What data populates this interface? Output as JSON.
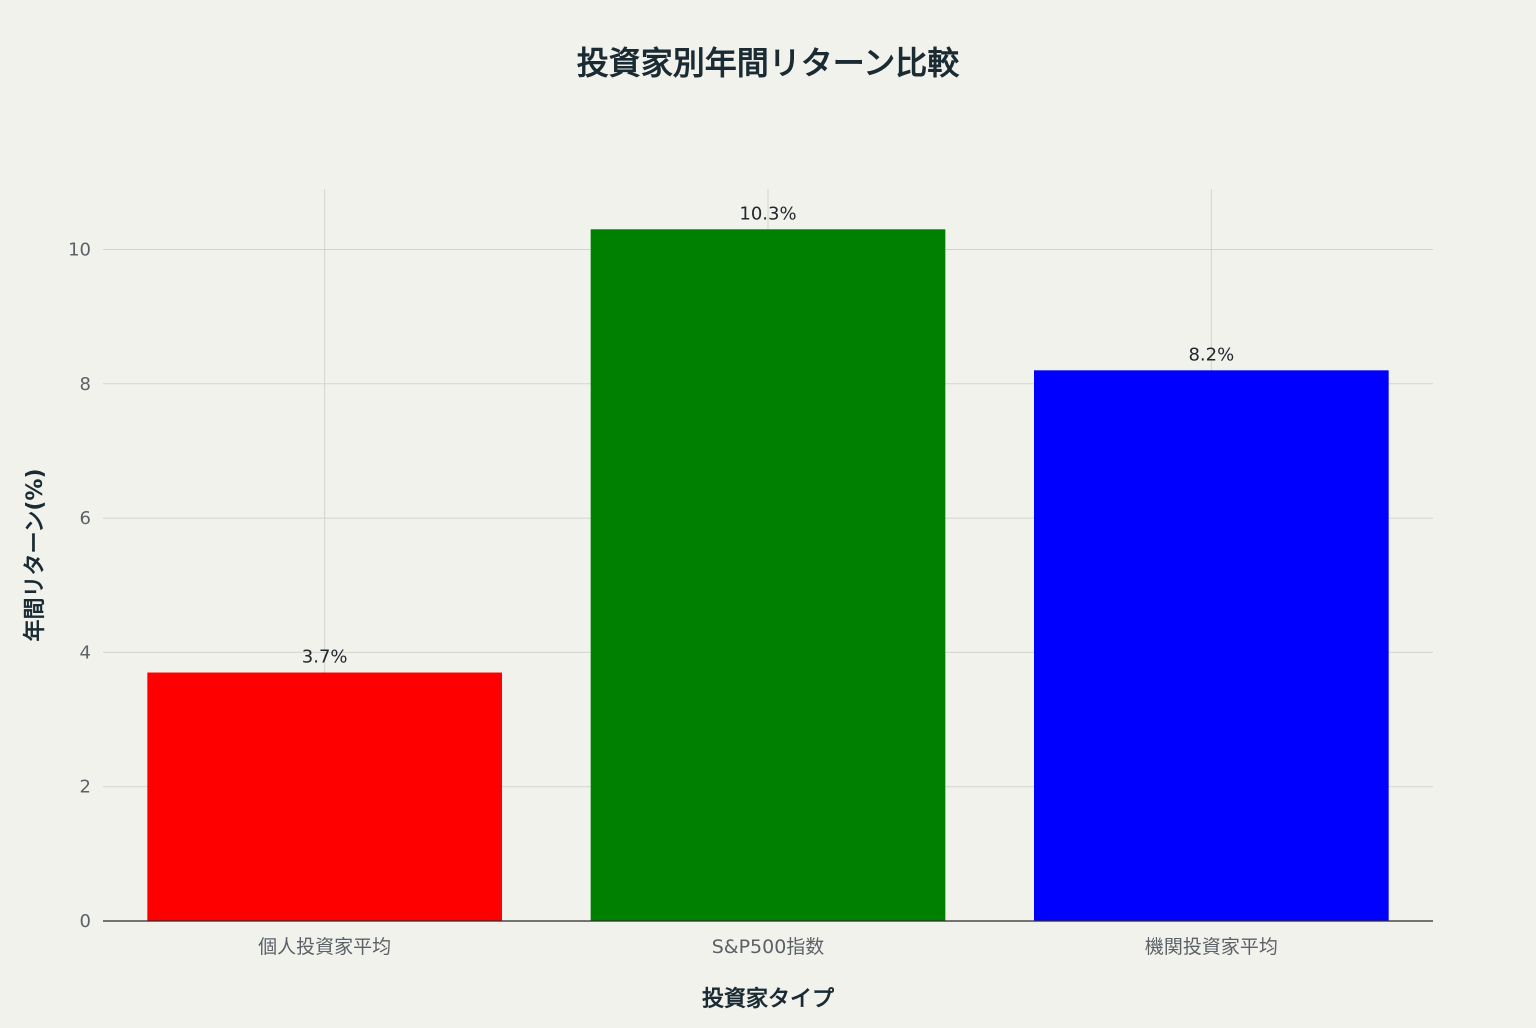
{
  "chart_data": {
    "type": "bar",
    "title": "投資家別年間リターン比較",
    "xlabel": "投資家タイプ",
    "ylabel": "年間リターン(%)",
    "categories": [
      "個人投資家平均",
      "S&P500指数",
      "機関投資家平均"
    ],
    "values": [
      3.7,
      10.3,
      8.2
    ],
    "data_labels": [
      "3.7%",
      "10.3%",
      "8.2%"
    ],
    "colors": [
      "#ff0000",
      "#008000",
      "#0000ff"
    ],
    "ylim": [
      0,
      10.9
    ],
    "yticks": [
      0,
      2,
      4,
      6,
      8,
      10
    ],
    "grid": true,
    "legend": "none"
  }
}
